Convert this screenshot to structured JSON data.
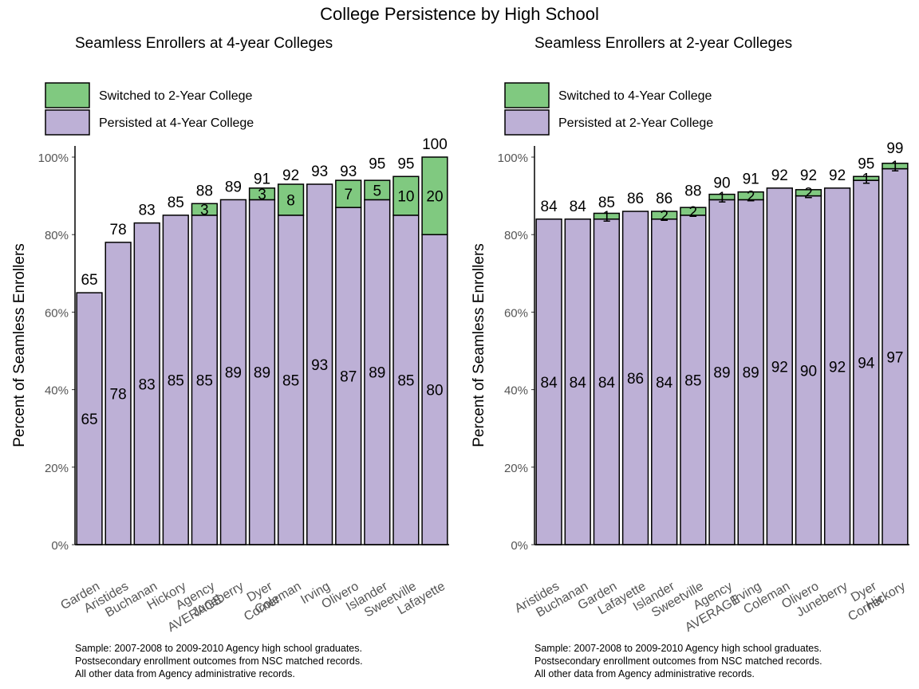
{
  "title": "College Persistence by High School",
  "colors": {
    "persist": "#bdb0d6",
    "switch": "#80c980",
    "outline": "#000000",
    "axis_text": "#555555"
  },
  "charts": [
    {
      "subtitle": "Seamless Enrollers at 4-year Colleges",
      "legend": [
        {
          "label": "Switched to 2-Year College",
          "color_key": "switch"
        },
        {
          "label": "Persisted at 4-Year College",
          "color_key": "persist"
        }
      ],
      "ylabel": "Percent of Seamless Enrollers",
      "yticks": [
        "0%",
        "20%",
        "40%",
        "60%",
        "80%",
        "100%"
      ],
      "footnote": [
        "Sample: 2007-2008 to 2009-2010 Agency high school graduates.",
        "Postsecondary enrollment outcomes from NSC matched records.",
        "All other data from Agency administrative records."
      ]
    },
    {
      "subtitle": "Seamless Enrollers at 2-year Colleges",
      "legend": [
        {
          "label": "Switched to 4-Year College",
          "color_key": "switch"
        },
        {
          "label": "Persisted at 2-Year College",
          "color_key": "persist"
        }
      ],
      "ylabel": "Percent of Seamless Enrollers",
      "yticks": [
        "0%",
        "20%",
        "40%",
        "60%",
        "80%",
        "100%"
      ],
      "footnote": [
        "Sample: 2007-2008 to 2009-2010 Agency high school graduates.",
        "Postsecondary enrollment outcomes from NSC matched records.",
        "All other data from Agency administrative records."
      ]
    }
  ],
  "chart_data": [
    {
      "type": "bar",
      "stacked": true,
      "title": "Seamless Enrollers at 4-year Colleges",
      "ylabel": "Percent of Seamless Enrollers",
      "ylim": [
        0,
        100
      ],
      "grid": false,
      "legend_position": "top-left",
      "categories": [
        "Garden",
        "Aristides",
        "Buchanan",
        "Hickory",
        "Agency AVERAGE",
        "Juneberry",
        "Dyer Corner",
        "Coleman",
        "Irving",
        "Olivero",
        "Islander",
        "Sweetville",
        "Lafayette"
      ],
      "tick_lines": [
        [
          "Garden"
        ],
        [
          "Aristides"
        ],
        [
          "Buchanan"
        ],
        [
          "Hickory"
        ],
        [
          "Agency",
          "AVERAGE"
        ],
        [
          "Juneberry"
        ],
        [
          "Dyer",
          "Corner"
        ],
        [
          "Coleman"
        ],
        [
          "Irving"
        ],
        [
          "Olivero"
        ],
        [
          "Islander"
        ],
        [
          "Sweetville"
        ],
        [
          "Lafayette"
        ]
      ],
      "series": [
        {
          "name": "Persisted at 4-Year College",
          "color_key": "persist",
          "values": [
            65,
            78,
            83,
            85,
            85,
            89,
            89,
            85,
            93,
            87,
            89,
            85,
            80
          ]
        },
        {
          "name": "Switched to 2-Year College",
          "color_key": "switch",
          "values": [
            0,
            0,
            0,
            0,
            3,
            0,
            3,
            8,
            0,
            7,
            5,
            10,
            20
          ]
        }
      ],
      "totals": [
        65,
        78,
        83,
        85,
        88,
        89,
        91,
        92,
        93,
        93,
        95,
        95,
        100
      ],
      "persist_labels": [
        "65",
        "78",
        "83",
        "85",
        "85",
        "89",
        "89",
        "85",
        "93",
        "87",
        "89",
        "85",
        "80"
      ],
      "switch_labels": [
        "",
        "",
        "",
        "",
        "3",
        "",
        "3",
        "8",
        "",
        "7",
        "5",
        "10",
        "20"
      ],
      "total_labels": [
        "65",
        "78",
        "83",
        "85",
        "88",
        "89",
        "91",
        "92",
        "93",
        "93",
        "95",
        "95",
        "100"
      ]
    },
    {
      "type": "bar",
      "stacked": true,
      "title": "Seamless Enrollers at 2-year Colleges",
      "ylabel": "Percent of Seamless Enrollers",
      "ylim": [
        0,
        100
      ],
      "grid": false,
      "legend_position": "top-left",
      "categories": [
        "Aristides",
        "Buchanan",
        "Garden",
        "Lafayette",
        "Islander",
        "Sweetville",
        "Agency AVERAGE",
        "Irving",
        "Coleman",
        "Olivero",
        "Juneberry",
        "Dyer Corner",
        "Hickory"
      ],
      "tick_lines": [
        [
          "Aristides"
        ],
        [
          "Buchanan"
        ],
        [
          "Garden"
        ],
        [
          "Lafayette"
        ],
        [
          "Islander"
        ],
        [
          "Sweetville"
        ],
        [
          "Agency",
          "AVERAGE"
        ],
        [
          "Irving"
        ],
        [
          "Coleman"
        ],
        [
          "Olivero"
        ],
        [
          "Juneberry"
        ],
        [
          "Dyer",
          "Corner"
        ],
        [
          "Hickory"
        ]
      ],
      "series": [
        {
          "name": "Persisted at 2-Year College",
          "color_key": "persist",
          "values": [
            84,
            84,
            84,
            86,
            84,
            85,
            89,
            89,
            92,
            90,
            92,
            94,
            97
          ]
        },
        {
          "name": "Switched to 4-Year College",
          "color_key": "switch",
          "values": [
            0,
            0,
            1.5,
            0,
            2,
            2,
            1.4,
            2,
            0,
            1.6,
            0,
            1,
            1.4
          ]
        }
      ],
      "totals": [
        84,
        84,
        85,
        86,
        86,
        88,
        90,
        91,
        92,
        92,
        92,
        95,
        99
      ],
      "persist_labels": [
        "84",
        "84",
        "84",
        "86",
        "84",
        "85",
        "89",
        "89",
        "92",
        "90",
        "92",
        "94",
        "97"
      ],
      "switch_labels": [
        "",
        "",
        "1",
        "",
        "2",
        "2",
        "1",
        "2",
        "",
        "2",
        "",
        "1",
        "1"
      ],
      "total_labels": [
        "84",
        "84",
        "85",
        "86",
        "86",
        "88",
        "90",
        "91",
        "92",
        "92",
        "92",
        "95",
        "99"
      ]
    }
  ]
}
